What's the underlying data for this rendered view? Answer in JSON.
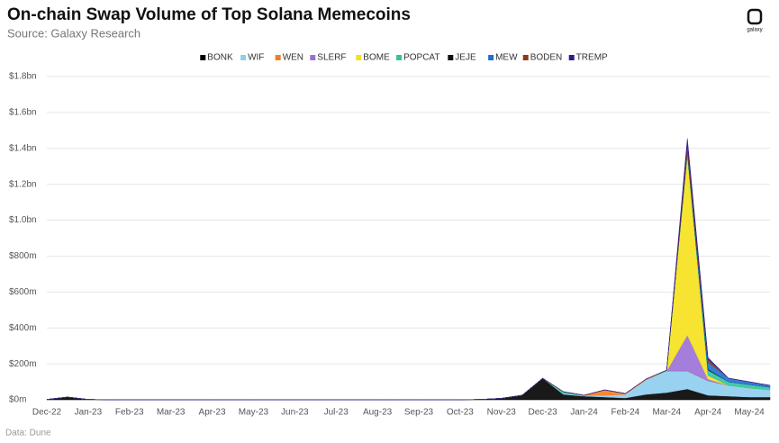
{
  "chart_data": {
    "type": "stacked-area",
    "title": "On-chain Swap Volume of Top Solana Memecoins",
    "subtitle": "Source: Galaxy Research",
    "source_note": "Data: Dune",
    "logo_text": "galaxy",
    "categories": [
      "Dec-22",
      null,
      "Jan-23",
      null,
      "Feb-23",
      null,
      "Mar-23",
      null,
      "Apr-23",
      null,
      "May-23",
      null,
      "Jun-23",
      null,
      "Jul-23",
      null,
      "Aug-23",
      null,
      "Sep-23",
      null,
      "Oct-23",
      null,
      "Nov-23",
      null,
      "Dec-23",
      null,
      "Jan-24",
      null,
      "Feb-24",
      null,
      "Mar-24",
      null,
      "Apr-24",
      null,
      "May-24",
      null
    ],
    "ylim": [
      0,
      1800
    ],
    "yticks": [
      {
        "value": 0,
        "label": "$0m"
      },
      {
        "value": 200,
        "label": "$200m"
      },
      {
        "value": 400,
        "label": "$400m"
      },
      {
        "value": 600,
        "label": "$600m"
      },
      {
        "value": 800,
        "label": "$800m"
      },
      {
        "value": 1000,
        "label": "$1.0bn"
      },
      {
        "value": 1200,
        "label": "$1.2bn"
      },
      {
        "value": 1400,
        "label": "$1.4bn"
      },
      {
        "value": 1600,
        "label": "$1.6bn"
      },
      {
        "value": 1800,
        "label": "$1.8bn"
      }
    ],
    "grid": true,
    "legend": "top",
    "series": [
      {
        "name": "BONK",
        "color": "#000000",
        "values": [
          2,
          15,
          2,
          0,
          0,
          0,
          0,
          0,
          0,
          0,
          0,
          0,
          0,
          0,
          0,
          0,
          0,
          0,
          0,
          0,
          0,
          2,
          8,
          25,
          120,
          30,
          20,
          15,
          10,
          30,
          40,
          60,
          25,
          20,
          15,
          15
        ]
      },
      {
        "name": "WIF",
        "color": "#8ecdf0",
        "values": [
          0,
          0,
          0,
          0,
          0,
          0,
          0,
          0,
          0,
          0,
          0,
          0,
          0,
          0,
          0,
          0,
          0,
          0,
          0,
          0,
          0,
          0,
          0,
          0,
          0,
          5,
          5,
          10,
          20,
          80,
          120,
          100,
          80,
          60,
          50,
          40
        ]
      },
      {
        "name": "WEN",
        "color": "#f47b20",
        "values": [
          0,
          0,
          0,
          0,
          0,
          0,
          0,
          0,
          0,
          0,
          0,
          0,
          0,
          0,
          0,
          0,
          0,
          0,
          0,
          0,
          0,
          0,
          0,
          0,
          0,
          0,
          0,
          30,
          5,
          5,
          0,
          0,
          0,
          0,
          0,
          0
        ]
      },
      {
        "name": "SLERF",
        "color": "#9b6fd6",
        "values": [
          0,
          0,
          0,
          0,
          0,
          0,
          0,
          0,
          0,
          0,
          0,
          0,
          0,
          0,
          0,
          0,
          0,
          0,
          0,
          0,
          0,
          0,
          0,
          0,
          0,
          0,
          0,
          0,
          0,
          0,
          0,
          200,
          10,
          0,
          0,
          0
        ]
      },
      {
        "name": "BOME",
        "color": "#f5e11b",
        "values": [
          0,
          0,
          0,
          0,
          0,
          0,
          0,
          0,
          0,
          0,
          0,
          0,
          0,
          0,
          0,
          0,
          0,
          0,
          0,
          0,
          0,
          0,
          0,
          0,
          0,
          0,
          0,
          0,
          0,
          0,
          0,
          1000,
          20,
          0,
          0,
          0
        ]
      },
      {
        "name": "POPCAT",
        "color": "#2ec4a0",
        "values": [
          0,
          0,
          0,
          0,
          0,
          0,
          0,
          0,
          0,
          0,
          0,
          0,
          0,
          0,
          0,
          0,
          0,
          0,
          0,
          0,
          0,
          0,
          0,
          0,
          0,
          10,
          0,
          0,
          0,
          0,
          5,
          20,
          30,
          20,
          20,
          15
        ]
      },
      {
        "name": "JEJE",
        "color": "#111111",
        "values": [
          0,
          0,
          0,
          0,
          0,
          0,
          0,
          0,
          0,
          0,
          0,
          0,
          0,
          0,
          0,
          0,
          0,
          0,
          0,
          0,
          0,
          0,
          0,
          0,
          0,
          0,
          0,
          0,
          0,
          0,
          0,
          5,
          5,
          0,
          0,
          0
        ]
      },
      {
        "name": "MEW",
        "color": "#1f6fd1",
        "values": [
          0,
          0,
          0,
          0,
          0,
          0,
          0,
          0,
          0,
          0,
          0,
          0,
          0,
          0,
          0,
          0,
          0,
          0,
          0,
          0,
          0,
          0,
          0,
          0,
          0,
          0,
          0,
          0,
          0,
          0,
          0,
          0,
          40,
          20,
          15,
          10
        ]
      },
      {
        "name": "BODEN",
        "color": "#8b3a0f",
        "values": [
          0,
          0,
          0,
          0,
          0,
          0,
          0,
          0,
          0,
          0,
          0,
          0,
          0,
          0,
          0,
          0,
          0,
          0,
          0,
          0,
          0,
          0,
          0,
          0,
          0,
          0,
          0,
          0,
          0,
          0,
          0,
          40,
          15,
          0,
          0,
          0
        ]
      },
      {
        "name": "TREMP",
        "color": "#2d1b8f",
        "values": [
          0,
          0,
          0,
          0,
          0,
          0,
          0,
          0,
          0,
          0,
          0,
          0,
          0,
          0,
          0,
          0,
          0,
          0,
          0,
          0,
          0,
          0,
          0,
          0,
          0,
          0,
          0,
          0,
          0,
          0,
          0,
          30,
          10,
          0,
          0,
          0
        ]
      }
    ]
  }
}
